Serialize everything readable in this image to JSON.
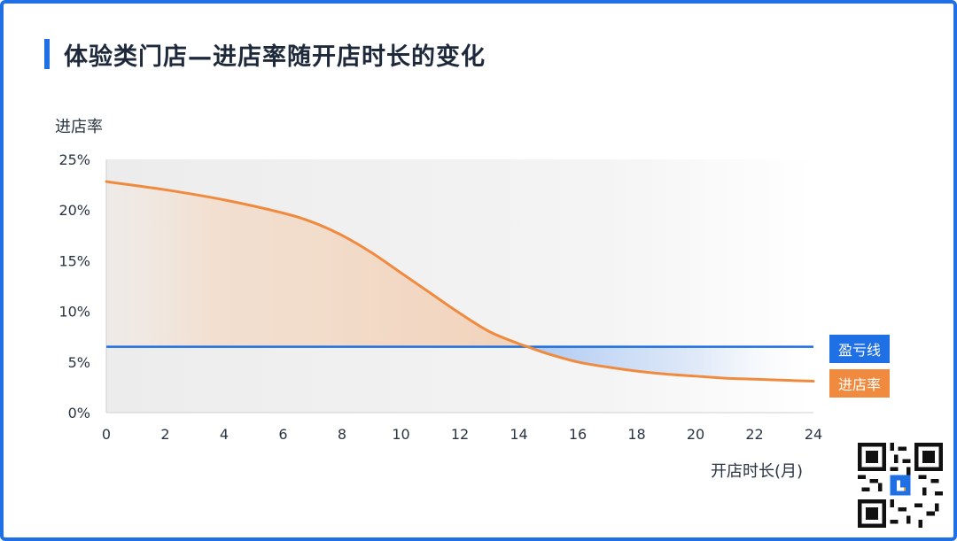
{
  "title": "体验类门店—进店率随开店时长的变化",
  "chart_data": {
    "type": "line",
    "title": "体验类门店—进店率随开店时长的变化",
    "ylabel": "进店率",
    "xlabel": "开店时长(月)",
    "xlim": [
      0,
      24
    ],
    "ylim": [
      0,
      25
    ],
    "x_ticks": [
      "0",
      "2",
      "4",
      "6",
      "8",
      "10",
      "12",
      "14",
      "16",
      "18",
      "20",
      "22",
      "24"
    ],
    "y_ticks": [
      "0%",
      "5%",
      "10%",
      "15%",
      "20%",
      "25%"
    ],
    "series": [
      {
        "name": "进店率",
        "color": "#ef8a3e",
        "x": [
          0,
          2,
          4,
          6,
          7,
          8,
          9,
          10,
          11,
          12,
          13,
          14,
          14.3,
          15,
          16,
          17,
          18,
          19,
          20,
          21,
          22,
          23,
          24
        ],
        "y": [
          22.8,
          22.0,
          21.0,
          19.7,
          18.8,
          17.5,
          15.8,
          13.8,
          11.8,
          9.8,
          8.0,
          6.8,
          6.5,
          5.8,
          5.0,
          4.5,
          4.1,
          3.8,
          3.6,
          3.4,
          3.3,
          3.2,
          3.1
        ]
      },
      {
        "name": "盈亏线",
        "color": "#1f6fe5",
        "x": [
          0,
          24
        ],
        "y": [
          6.5,
          6.5
        ]
      }
    ],
    "legend": [
      {
        "label": "盈亏线",
        "color": "#1f6fe5"
      },
      {
        "label": "进店率",
        "color": "#ef8a3e"
      }
    ]
  }
}
